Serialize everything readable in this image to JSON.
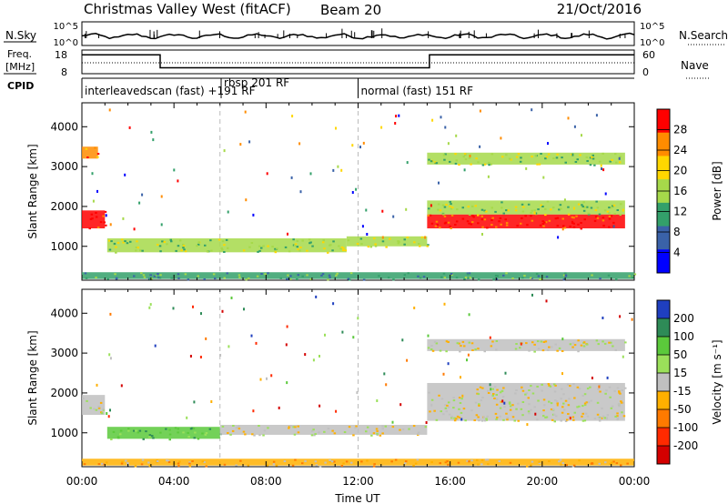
{
  "header": {
    "title": "Christmas Valley West (fitACF)",
    "beam": "Beam 20",
    "date": "21/Oct/2016"
  },
  "noise_panel": {
    "left_label": "N.Sky",
    "right_label": "N.Search",
    "left_ticks": [
      "10^5",
      "10^0"
    ],
    "right_ticks": [
      "10^5",
      "10^0"
    ]
  },
  "freq_panel": {
    "left_label_1": "Freq.",
    "left_label_2": "[MHz]",
    "right_label": "Nave",
    "left_ticks": [
      "18",
      "8"
    ],
    "right_ticks": [
      "60",
      "0"
    ],
    "freq_steps": [
      {
        "t0": 0,
        "t1": 3.4,
        "f": 16
      },
      {
        "t0": 3.4,
        "t1": 15.1,
        "f": 10.5
      },
      {
        "t0": 15.1,
        "t1": 24,
        "f": 16
      }
    ]
  },
  "cpid_panel": {
    "label": "CPID",
    "modes": [
      {
        "time": 0,
        "label": "interleavedscan (fast) +191 RF"
      },
      {
        "time": 6.05,
        "label": "rbsp 201 RF"
      },
      {
        "time": 12.0,
        "label": "normal (fast) 151 RF"
      }
    ]
  },
  "chart_data": [
    {
      "type": "heatmap",
      "name": "power",
      "ylabel": "Slant Range [km]",
      "ylim": [
        150,
        4600
      ],
      "yticks": [
        1000,
        2000,
        3000,
        4000
      ],
      "colorbar_label": "Power [dB]",
      "colorbar_ticks": [
        "4",
        "8",
        "12",
        "16",
        "20",
        "24",
        "28"
      ],
      "colorbar_colors": [
        "#0000ff",
        "#3a62a8",
        "#33a06a",
        "#a6d94a",
        "#ffd700",
        "#ff8c00",
        "#ff0000"
      ],
      "regions": [
        {
          "t0": 0.0,
          "t1": 1.0,
          "r0": 1450,
          "r1": 1900,
          "level": 6
        },
        {
          "t0": 0.0,
          "t1": 0.7,
          "r0": 3200,
          "r1": 3500,
          "level": 5
        },
        {
          "t0": 1.1,
          "t1": 11.5,
          "r0": 850,
          "r1": 1200,
          "level": 3
        },
        {
          "t0": 11.5,
          "t1": 15.0,
          "r0": 1000,
          "r1": 1250,
          "level": 3
        },
        {
          "t0": 15.0,
          "t1": 23.6,
          "r0": 1450,
          "r1": 1800,
          "level": 6
        },
        {
          "t0": 15.0,
          "t1": 23.6,
          "r0": 1800,
          "r1": 2150,
          "level": 3
        },
        {
          "t0": 15.0,
          "t1": 23.6,
          "r0": 3050,
          "r1": 3350,
          "level": 3
        },
        {
          "t0": 0.0,
          "t1": 24.0,
          "r0": 180,
          "r1": 350,
          "level": 2
        }
      ]
    },
    {
      "type": "heatmap",
      "name": "velocity",
      "ylabel": "Slant Range [km]",
      "xlabel": "Time UT",
      "ylim": [
        150,
        4600
      ],
      "yticks": [
        1000,
        2000,
        3000,
        4000
      ],
      "xticks": [
        "00:00",
        "04:00",
        "08:00",
        "12:00",
        "16:00",
        "20:00",
        "00:00"
      ],
      "xlim": [
        0,
        24
      ],
      "colorbar_label": "Velocity [m s⁻¹]",
      "colorbar_ticks": [
        "200",
        "100",
        "50",
        "15",
        "-15",
        "-50",
        "-100",
        "-200"
      ],
      "colorbar_colors": [
        "#1f3fbf",
        "#2e8b57",
        "#5bc93b",
        "#9be05a",
        "#c0c0c0",
        "#ffb000",
        "#ff7a00",
        "#ff2a00",
        "#d40000"
      ],
      "regions": [
        {
          "t0": 0.0,
          "t1": 1.0,
          "r0": 1450,
          "r1": 1950,
          "level": 4
        },
        {
          "t0": 1.1,
          "t1": 6.0,
          "r0": 850,
          "r1": 1150,
          "level": 2
        },
        {
          "t0": 6.0,
          "t1": 15.0,
          "r0": 950,
          "r1": 1200,
          "level": 4
        },
        {
          "t0": 15.0,
          "t1": 23.6,
          "r0": 1300,
          "r1": 2250,
          "level": 4
        },
        {
          "t0": 15.0,
          "t1": 23.6,
          "r0": 3050,
          "r1": 3350,
          "level": 4
        },
        {
          "t0": 0.0,
          "t1": 24.0,
          "r0": 180,
          "r1": 350,
          "level": 5
        }
      ]
    }
  ]
}
